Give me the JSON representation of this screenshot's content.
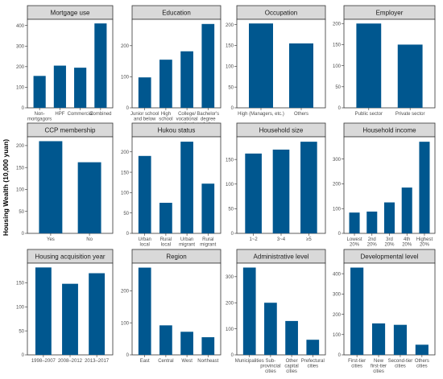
{
  "colors": {
    "bar": "#00578f",
    "strip": "#d9d9d9",
    "frame": "#333333",
    "axis_text": "#4d4d4d"
  },
  "ylabel": "Housing Wealth (10,000 yuan)",
  "chart_data": [
    {
      "type": "bar",
      "title": "Mortgage use",
      "categories": [
        "Non-\nmortgagors",
        "HPF",
        "Commercial",
        "Combined"
      ],
      "values": [
        155,
        205,
        195,
        410
      ],
      "ylim": [
        0,
        430
      ],
      "yticks": [
        0,
        100,
        200,
        300,
        400
      ]
    },
    {
      "type": "bar",
      "title": "Education",
      "categories": [
        "Junior school\nand below",
        "High\nschool",
        "College/\nvocational\nschool",
        "Bachelor's\ndegree\nand above"
      ],
      "values": [
        98,
        155,
        182,
        270
      ],
      "ylim": [
        0,
        285
      ],
      "yticks": [
        0,
        100,
        200
      ]
    },
    {
      "type": "bar",
      "title": "Occupation",
      "categories": [
        "High (Managers, etc.)",
        "Others"
      ],
      "values": [
        203,
        155
      ],
      "ylim": [
        0,
        213
      ],
      "yticks": [
        0,
        50,
        100,
        150,
        200
      ]
    },
    {
      "type": "bar",
      "title": "Employer",
      "categories": [
        "Public sector",
        "Private sector"
      ],
      "values": [
        200,
        150
      ],
      "ylim": [
        0,
        210
      ],
      "yticks": [
        0,
        50,
        100,
        150,
        200
      ]
    },
    {
      "type": "bar",
      "title": "CCP membership",
      "categories": [
        "Yes",
        "No"
      ],
      "values": [
        210,
        162
      ],
      "ylim": [
        0,
        220
      ],
      "yticks": [
        0,
        50,
        100,
        150,
        200
      ]
    },
    {
      "type": "bar",
      "title": "Hukou status",
      "categories": [
        "Urban\nlocal",
        "Rural\nlocal",
        "Urban\nmigrant",
        "Rural\nmigrant"
      ],
      "values": [
        190,
        75,
        225,
        122
      ],
      "ylim": [
        0,
        237
      ],
      "yticks": [
        0,
        50,
        100,
        150,
        200
      ]
    },
    {
      "type": "bar",
      "title": "Household size",
      "categories": [
        "1~2",
        "3~4",
        "≥5"
      ],
      "values": [
        162,
        170,
        186
      ],
      "ylim": [
        0,
        196
      ],
      "yticks": [
        0,
        50,
        100,
        150
      ]
    },
    {
      "type": "bar",
      "title": "Household income",
      "categories": [
        "Lowest\n20%",
        "2nd\n20%",
        "3rd\n20%",
        "4th\n20%",
        "Highest\n20%"
      ],
      "values": [
        84,
        88,
        125,
        185,
        370
      ],
      "ylim": [
        0,
        390
      ],
      "yticks": [
        0,
        100,
        200,
        300
      ]
    },
    {
      "type": "bar",
      "title": "Housing acquisition year",
      "categories": [
        "1998–2007",
        "2008–2012",
        "2013–2017"
      ],
      "values": [
        182,
        148,
        170
      ],
      "ylim": [
        0,
        191
      ],
      "yticks": [
        0,
        50,
        100,
        150
      ]
    },
    {
      "type": "bar",
      "title": "Region",
      "categories": [
        "East",
        "Central",
        "West",
        "Northeast"
      ],
      "values": [
        272,
        92,
        72,
        55
      ],
      "ylim": [
        0,
        286
      ],
      "yticks": [
        0,
        100,
        200
      ]
    },
    {
      "type": "bar",
      "title": "Administrative level",
      "categories": [
        "Municipalities",
        "Sub-\nprovincial\ncities",
        "Other\ncapital\ncities",
        "Prefectural\ncities"
      ],
      "values": [
        335,
        200,
        130,
        58
      ],
      "ylim": [
        0,
        352
      ],
      "yticks": [
        0,
        100,
        200,
        300
      ]
    },
    {
      "type": "bar",
      "title": "Developmental level",
      "categories": [
        "First-tier\ncities",
        "New\nfirst-tier\ncities",
        "Second-tier\ncities",
        "Others\ncities"
      ],
      "values": [
        430,
        155,
        148,
        50
      ],
      "ylim": [
        0,
        452
      ],
      "yticks": [
        0,
        100,
        200,
        300,
        400
      ]
    }
  ]
}
